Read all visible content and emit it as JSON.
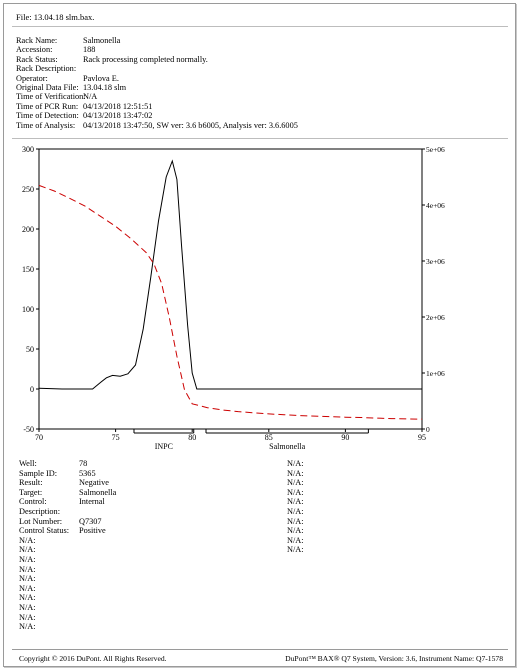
{
  "file_line": "File: 13.04.18 slm.bax.",
  "header": [
    {
      "key": "Rack Name:",
      "value": "Salmonella"
    },
    {
      "key": "Accession:",
      "value": "188"
    },
    {
      "key": "Rack Status:",
      "value": "Rack processing completed normally."
    },
    {
      "key": "Rack Description:",
      "value": ""
    },
    {
      "key": "Operator:",
      "value": "Pavlova E."
    },
    {
      "key": "Original Data File:",
      "value": "13.04.18 slm"
    },
    {
      "key": "Time of Verification:",
      "value": "N/A"
    },
    {
      "key": "Time of PCR Run:",
      "value": "04/13/2018 12:51:51"
    },
    {
      "key": "Time of Detection:",
      "value": "04/13/2018 13:47:02"
    },
    {
      "key": "Time of Analysis:",
      "value": "04/13/2018 13:47:50, SW ver: 3.6 b6005, Analysis ver: 3.6.6005"
    }
  ],
  "chart_data": {
    "type": "line",
    "title": "",
    "xlabel": "",
    "ylabel": "",
    "xlim": [
      70,
      95
    ],
    "ylim": [
      -50,
      300
    ],
    "y2lim": [
      0,
      5000000
    ],
    "x_ticks": [
      "70",
      "75",
      "80",
      "85",
      "90",
      "95"
    ],
    "y_ticks": [
      "300",
      "250",
      "200",
      "150",
      "100",
      "50",
      "0",
      "-50"
    ],
    "y2_ticks": [
      "5e+06",
      "4e+06",
      "3e+06",
      "2e+06",
      "1e+06",
      "0"
    ],
    "grid": false,
    "series": [
      {
        "color": "#000000",
        "style": "solid",
        "axis": "left",
        "x": [
          70.0,
          71.5,
          72.5,
          73.5,
          74.0,
          74.4,
          74.8,
          75.3,
          75.8,
          76.3,
          76.8,
          77.3,
          77.8,
          78.3,
          78.7,
          79.0,
          79.3,
          79.7,
          80.0,
          80.3,
          82.0,
          85.0,
          90.0,
          95.0
        ],
        "y": [
          1,
          0,
          0,
          0,
          8,
          14,
          17,
          16,
          19,
          30,
          75,
          140,
          210,
          265,
          285,
          262,
          180,
          80,
          20,
          0,
          0,
          0,
          0,
          0
        ]
      },
      {
        "color": "#cc0000",
        "style": "dashed",
        "axis": "right",
        "x": [
          70,
          71,
          72,
          73,
          74,
          75,
          76,
          77,
          77.5,
          78,
          78.5,
          79,
          79.5,
          80,
          81,
          82,
          83,
          84,
          85,
          86,
          87,
          88,
          89,
          90,
          91,
          92,
          93,
          94,
          95
        ],
        "y": [
          4350000,
          4250000,
          4120000,
          3980000,
          3800000,
          3620000,
          3400000,
          3150000,
          2950000,
          2600000,
          2000000,
          1300000,
          700000,
          450000,
          380000,
          340000,
          310000,
          290000,
          270000,
          255000,
          240000,
          230000,
          220000,
          210000,
          205000,
          195000,
          185000,
          180000,
          175000
        ]
      }
    ],
    "annotations": [
      {
        "label": "INPC",
        "x_start": 76.2,
        "x_end": 80.1
      },
      {
        "label": "Salmonella",
        "x_start": 80.9,
        "x_end": 91.5
      }
    ]
  },
  "well_info_left": [
    {
      "key": "Well:",
      "value": "78"
    },
    {
      "key": "Sample ID:",
      "value": "5365"
    },
    {
      "key": "Result:",
      "value": "Negative"
    },
    {
      "key": "Target:",
      "value": "Salmonella"
    },
    {
      "key": "Control:",
      "value": "Internal"
    },
    {
      "key": "Description:",
      "value": ""
    },
    {
      "key": "Lot Number:",
      "value": "Q7307"
    },
    {
      "key": "Control Status:",
      "value": "Positive"
    },
    {
      "key": "N/A:",
      "value": ""
    },
    {
      "key": "N/A:",
      "value": ""
    },
    {
      "key": "N/A:",
      "value": ""
    },
    {
      "key": "N/A:",
      "value": ""
    },
    {
      "key": "N/A:",
      "value": ""
    },
    {
      "key": "N/A:",
      "value": ""
    },
    {
      "key": "N/A:",
      "value": ""
    },
    {
      "key": "N/A:",
      "value": ""
    },
    {
      "key": "N/A:",
      "value": ""
    },
    {
      "key": "N/A:",
      "value": ""
    }
  ],
  "well_info_right": [
    "N/A:",
    "N/A:",
    "N/A:",
    "N/A:",
    "N/A:",
    "N/A:",
    "N/A:",
    "N/A:",
    "N/A:",
    "N/A:"
  ],
  "footer": {
    "left": "Copyright © 2016 DuPont.  All Rights Reserved.",
    "right": "DuPont™ BAX® Q7 System,  Version: 3.6,  Instrument Name: Q7-1578"
  }
}
